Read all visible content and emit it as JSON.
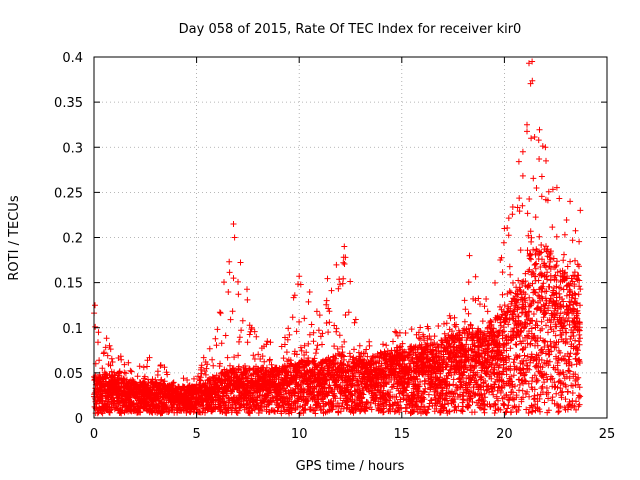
{
  "chart_data": {
    "type": "scatter",
    "title": "Day 058 of 2015, Rate Of TEC Index for receiver kir0",
    "xlabel": "GPS time / hours",
    "ylabel": "ROTI / TECUs",
    "xlim": [
      0,
      25
    ],
    "ylim": [
      0,
      0.4
    ],
    "xticks": [
      0,
      5,
      10,
      15,
      20,
      25
    ],
    "xtick_labels": [
      "0",
      "5",
      "10",
      "15",
      "20",
      "25"
    ],
    "yticks": [
      0,
      0.05,
      0.1,
      0.15,
      0.2,
      0.25,
      0.3,
      0.35,
      0.4
    ],
    "ytick_labels": [
      "0",
      "0.05",
      "0.1",
      "0.15",
      "0.2",
      "0.25",
      "0.3",
      "0.35",
      "0.4"
    ],
    "grid": true,
    "marker": "plus",
    "series_color": "#ff0000",
    "x_data_range": [
      0,
      23.7
    ],
    "envelope": [
      {
        "x": 0.0,
        "low": 0.005,
        "typical": 0.03,
        "high": 0.12
      },
      {
        "x": 1.0,
        "low": 0.005,
        "typical": 0.03,
        "high": 0.07
      },
      {
        "x": 2.0,
        "low": 0.005,
        "typical": 0.025,
        "high": 0.065
      },
      {
        "x": 3.0,
        "low": 0.005,
        "typical": 0.025,
        "high": 0.07
      },
      {
        "x": 4.0,
        "low": 0.005,
        "typical": 0.022,
        "high": 0.045
      },
      {
        "x": 5.0,
        "low": 0.005,
        "typical": 0.022,
        "high": 0.045
      },
      {
        "x": 6.0,
        "low": 0.005,
        "typical": 0.03,
        "high": 0.11
      },
      {
        "x": 6.8,
        "low": 0.005,
        "typical": 0.035,
        "high": 0.215
      },
      {
        "x": 8.0,
        "low": 0.005,
        "typical": 0.035,
        "high": 0.09
      },
      {
        "x": 9.0,
        "low": 0.005,
        "typical": 0.035,
        "high": 0.08
      },
      {
        "x": 10.0,
        "low": 0.005,
        "typical": 0.04,
        "high": 0.155
      },
      {
        "x": 11.0,
        "low": 0.005,
        "typical": 0.04,
        "high": 0.14
      },
      {
        "x": 12.2,
        "low": 0.005,
        "typical": 0.045,
        "high": 0.19
      },
      {
        "x": 13.0,
        "low": 0.005,
        "typical": 0.04,
        "high": 0.1
      },
      {
        "x": 14.0,
        "low": 0.005,
        "typical": 0.045,
        "high": 0.08
      },
      {
        "x": 15.0,
        "low": 0.005,
        "typical": 0.05,
        "high": 0.105
      },
      {
        "x": 16.0,
        "low": 0.005,
        "typical": 0.05,
        "high": 0.1
      },
      {
        "x": 17.0,
        "low": 0.005,
        "typical": 0.055,
        "high": 0.115
      },
      {
        "x": 18.0,
        "low": 0.005,
        "typical": 0.06,
        "high": 0.135
      },
      {
        "x": 18.3,
        "low": 0.005,
        "typical": 0.065,
        "high": 0.18
      },
      {
        "x": 19.0,
        "low": 0.005,
        "typical": 0.06,
        "high": 0.125
      },
      {
        "x": 20.0,
        "low": 0.005,
        "typical": 0.08,
        "high": 0.21
      },
      {
        "x": 21.0,
        "low": 0.005,
        "typical": 0.1,
        "high": 0.32
      },
      {
        "x": 21.3,
        "low": 0.005,
        "typical": 0.12,
        "high": 0.395
      },
      {
        "x": 22.0,
        "low": 0.005,
        "typical": 0.12,
        "high": 0.3
      },
      {
        "x": 23.0,
        "low": 0.005,
        "typical": 0.1,
        "high": 0.24
      },
      {
        "x": 23.7,
        "low": 0.01,
        "typical": 0.1,
        "high": 0.23
      }
    ],
    "notable_points": [
      {
        "x": 6.8,
        "y": 0.215
      },
      {
        "x": 6.85,
        "y": 0.2
      },
      {
        "x": 6.8,
        "y": 0.155
      },
      {
        "x": 10.0,
        "y": 0.157
      },
      {
        "x": 12.2,
        "y": 0.19
      },
      {
        "x": 12.25,
        "y": 0.178
      },
      {
        "x": 18.3,
        "y": 0.18
      },
      {
        "x": 20.0,
        "y": 0.21
      },
      {
        "x": 21.2,
        "y": 0.393
      },
      {
        "x": 21.35,
        "y": 0.395
      },
      {
        "x": 21.1,
        "y": 0.325
      },
      {
        "x": 21.3,
        "y": 0.31
      },
      {
        "x": 22.0,
        "y": 0.3
      },
      {
        "x": 23.2,
        "y": 0.24
      },
      {
        "x": 23.7,
        "y": 0.23
      },
      {
        "x": 0.05,
        "y": 0.125
      }
    ]
  }
}
